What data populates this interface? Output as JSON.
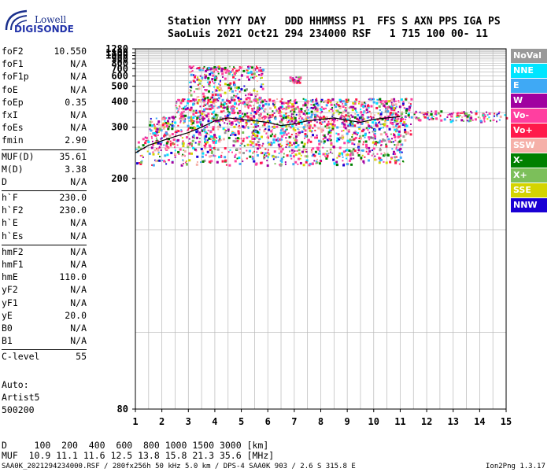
{
  "logo": {
    "line1": "Lowell",
    "line2": "DIGISONDE"
  },
  "header": {
    "line1": "Station YYYY DAY   DDD HHMMSS P1  FFS S AXN PPS IGA PS",
    "line2": "SaoLuis 2021 Oct21 294 234000 RSF   1 715 100 00- 11"
  },
  "params": {
    "group1": [
      {
        "k": "foF2",
        "v": "10.550"
      },
      {
        "k": "foF1",
        "v": "N/A"
      },
      {
        "k": "foF1p",
        "v": "N/A"
      },
      {
        "k": "foE",
        "v": "N/A"
      },
      {
        "k": "foEp",
        "v": "0.35"
      },
      {
        "k": "fxI",
        "v": "N/A"
      },
      {
        "k": "foEs",
        "v": "N/A"
      },
      {
        "k": "fmin",
        "v": "2.90"
      }
    ],
    "group2": [
      {
        "k": "MUF(D)",
        "v": "35.61"
      },
      {
        "k": "M(D)",
        "v": "3.38"
      },
      {
        "k": "D",
        "v": "N/A"
      }
    ],
    "group3": [
      {
        "k": "h`F",
        "v": "230.0"
      },
      {
        "k": "h`F2",
        "v": "230.0"
      },
      {
        "k": "h`E",
        "v": "N/A"
      },
      {
        "k": "h`Es",
        "v": "N/A"
      }
    ],
    "group4": [
      {
        "k": "hmF2",
        "v": "N/A"
      },
      {
        "k": "hmF1",
        "v": "N/A"
      },
      {
        "k": "hmE",
        "v": "110.0"
      },
      {
        "k": "yF2",
        "v": "N/A"
      },
      {
        "k": "yF1",
        "v": "N/A"
      },
      {
        "k": "yE",
        "v": "20.0"
      },
      {
        "k": "B0",
        "v": "N/A"
      },
      {
        "k": "B1",
        "v": "N/A"
      }
    ],
    "group5": [
      {
        "k": "C-level",
        "v": "55"
      }
    ]
  },
  "auto": {
    "line1": "Auto:",
    "line2": "Artist5",
    "line3": "500200"
  },
  "bottom": {
    "d_line": "D     100  200  400  600  800 1000 1500 3000 [km]",
    "muf_line": "MUF  10.9 11.1 11.6 12.5 13.8 15.8 21.3 35.6 [MHz]"
  },
  "footer": {
    "left": "SAA0K_2021294234000.RSF / 280fx256h 50 kHz 5.0 km / DPS-4 SAA0K 903 / 2.6 S 315.8 E",
    "right": "Ion2Png 1.3.17"
  },
  "legend": [
    {
      "label": "NoVal",
      "color": "#999999"
    },
    {
      "label": "NNE",
      "color": "#00e5ff"
    },
    {
      "label": "E",
      "color": "#3fa9f5"
    },
    {
      "label": "W",
      "color": "#a000a0"
    },
    {
      "label": "Vo-",
      "color": "#ff3fa0"
    },
    {
      "label": "Vo+",
      "color": "#ff1a4a"
    },
    {
      "label": "SSW",
      "color": "#f5b0a8"
    },
    {
      "label": "X-",
      "color": "#008000"
    },
    {
      "label": "X+",
      "color": "#7cbf5a"
    },
    {
      "label": "SSE",
      "color": "#d4d400"
    },
    {
      "label": "NNW",
      "color": "#1a00d4"
    }
  ],
  "chart_data": {
    "type": "scatter",
    "title": "",
    "xlabel": "",
    "ylabel": "",
    "x_ticks": [
      "1",
      "2",
      "3",
      "4",
      "5",
      "6",
      "7",
      "8",
      "9",
      "10",
      "11",
      "12",
      "13",
      "14",
      "15"
    ],
    "y_ticks": [
      "80",
      "200",
      "300",
      "400",
      "500",
      "600",
      "700",
      "800",
      "900",
      "1000",
      "1100",
      "1280"
    ],
    "xlim": [
      1,
      15
    ],
    "y_tick_values": [
      80,
      200,
      300,
      400,
      500,
      600,
      700,
      800,
      900,
      1000,
      1100,
      1280
    ],
    "y_scale": "reciprocal (1/h)",
    "grid": true,
    "series": [
      {
        "color": "#000000",
        "values": [
          [
            1.0,
            240
          ],
          [
            1.5,
            255
          ],
          [
            2.0,
            265
          ],
          [
            2.5,
            275
          ],
          [
            3.0,
            285
          ],
          [
            3.5,
            300
          ],
          [
            4.0,
            320
          ],
          [
            4.5,
            330
          ],
          [
            5.0,
            325
          ],
          [
            5.5,
            320
          ],
          [
            6.0,
            315
          ],
          [
            6.5,
            305
          ],
          [
            7.0,
            310
          ],
          [
            7.5,
            320
          ],
          [
            8.0,
            325
          ],
          [
            8.5,
            330
          ],
          [
            9.0,
            322
          ],
          [
            9.5,
            315
          ],
          [
            10.0,
            325
          ],
          [
            10.5,
            330
          ],
          [
            11.0,
            335
          ]
        ]
      }
    ],
    "echo_regions": [
      {
        "x": [
          1.0,
          11.2
        ],
        "y": [
          220,
          280
        ]
      },
      {
        "x": [
          1.5,
          11.4
        ],
        "y": [
          280,
          340
        ]
      },
      {
        "x": [
          2.5,
          11.4
        ],
        "y": [
          330,
          420
        ]
      },
      {
        "x": [
          3.0,
          5.8
        ],
        "y": [
          420,
          760
        ]
      },
      {
        "x": [
          6.8,
          7.2
        ],
        "y": [
          540,
          600
        ]
      },
      {
        "x": [
          11.5,
          15.0
        ],
        "y": [
          320,
          360
        ]
      }
    ]
  }
}
